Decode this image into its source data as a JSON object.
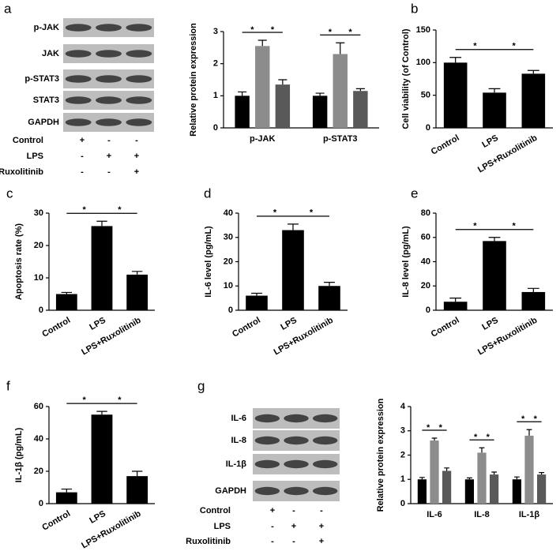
{
  "chart_data": [
    {
      "type": "bar",
      "ylabel": "Relative protein expression",
      "categories": [
        "p-JAK",
        "p-STAT3"
      ],
      "series": [
        {
          "color": "#000000",
          "values": [
            1.0,
            1.0
          ],
          "errors": [
            0.12,
            0.08
          ]
        },
        {
          "color": "#8c8c8c",
          "values": [
            2.55,
            2.3
          ],
          "errors": [
            0.18,
            0.35
          ]
        },
        {
          "color": "#595959",
          "values": [
            1.35,
            1.15
          ],
          "errors": [
            0.15,
            0.07
          ]
        }
      ],
      "ylim": [
        0,
        3
      ],
      "yticks": [
        0,
        1,
        2,
        3
      ],
      "annotations": [
        "*",
        "*",
        "*",
        "*"
      ]
    },
    {
      "type": "bar",
      "panel": "b",
      "ylabel": "Cell viability (of Control)",
      "categories": [
        "Control",
        "LPS",
        "LPS+Ruxolitinib"
      ],
      "values": [
        100,
        54,
        83
      ],
      "errors": [
        8,
        6,
        5
      ],
      "color": "#000000",
      "ylim": [
        0,
        150
      ],
      "yticks": [
        0,
        50,
        100,
        150
      ],
      "annotations": [
        "*",
        "*"
      ]
    },
    {
      "type": "bar",
      "panel": "c",
      "ylabel": "Apoptosis rate (%)",
      "categories": [
        "Control",
        "LPS",
        "LPS+Ruxolitinib"
      ],
      "values": [
        5,
        26,
        11
      ],
      "errors": [
        0.5,
        1.5,
        1
      ],
      "color": "#000000",
      "ylim": [
        0,
        30
      ],
      "yticks": [
        0,
        10,
        20,
        30
      ],
      "annotations": [
        "*",
        "*"
      ]
    },
    {
      "type": "bar",
      "panel": "d",
      "ylabel": "IL-6 level (pg/mL)",
      "categories": [
        "Control",
        "LPS",
        "LPS+Ruxolitinib"
      ],
      "values": [
        6,
        33,
        10
      ],
      "errors": [
        1,
        2.5,
        1.5
      ],
      "color": "#000000",
      "ylim": [
        0,
        40
      ],
      "yticks": [
        0,
        10,
        20,
        30,
        40
      ],
      "annotations": [
        "*",
        "*"
      ]
    },
    {
      "type": "bar",
      "panel": "e",
      "ylabel": "IL-8 level (pg/mL)",
      "categories": [
        "Control",
        "LPS",
        "LPS+Ruxolitinib"
      ],
      "values": [
        7,
        57,
        15
      ],
      "errors": [
        3,
        3,
        3
      ],
      "color": "#000000",
      "ylim": [
        0,
        80
      ],
      "yticks": [
        0,
        20,
        40,
        60,
        80
      ],
      "annotations": [
        "*",
        "*"
      ]
    },
    {
      "type": "bar",
      "panel": "f",
      "ylabel": "IL-1β (pg/mL)",
      "categories": [
        "Control",
        "LPS",
        "LPS+Ruxolitinib"
      ],
      "values": [
        7,
        55,
        17
      ],
      "errors": [
        2,
        2,
        3
      ],
      "color": "#000000",
      "ylim": [
        0,
        60
      ],
      "yticks": [
        0,
        20,
        40,
        60
      ],
      "annotations": [
        "*",
        "*"
      ]
    },
    {
      "type": "bar",
      "ylabel": "Relative protein expression",
      "categories": [
        "IL-6",
        "IL-8",
        "IL-1β"
      ],
      "series": [
        {
          "color": "#000000",
          "values": [
            1.0,
            1.0,
            1.0
          ],
          "errors": [
            0.08,
            0.06,
            0.1
          ]
        },
        {
          "color": "#8c8c8c",
          "values": [
            2.6,
            2.1,
            2.8
          ],
          "errors": [
            0.1,
            0.2,
            0.25
          ]
        },
        {
          "color": "#595959",
          "values": [
            1.35,
            1.2,
            1.2
          ],
          "errors": [
            0.12,
            0.1,
            0.08
          ]
        }
      ],
      "ylim": [
        0,
        4
      ],
      "yticks": [
        0,
        1,
        2,
        3,
        4
      ],
      "annotations": [
        "*",
        "*",
        "*",
        "*",
        "*",
        "*"
      ]
    }
  ],
  "blots": [
    {
      "panel": "a",
      "bands": [
        "p-JAK",
        "JAK",
        "p-STAT3",
        "STAT3",
        "GAPDH"
      ],
      "conditions": [
        {
          "name": "Control",
          "signs": [
            "+",
            "-",
            "-"
          ]
        },
        {
          "name": "LPS",
          "signs": [
            "-",
            "+",
            "+"
          ]
        },
        {
          "name": "Ruxolitinib",
          "signs": [
            "-",
            "-",
            "+"
          ]
        }
      ]
    },
    {
      "panel": "g",
      "bands": [
        "IL-6",
        "IL-8",
        "IL-1β",
        "GAPDH"
      ],
      "conditions": [
        {
          "name": "Control",
          "signs": [
            "+",
            "-",
            "-"
          ]
        },
        {
          "name": "LPS",
          "signs": [
            "-",
            "+",
            "+"
          ]
        },
        {
          "name": "Ruxolitinib",
          "signs": [
            "-",
            "-",
            "+"
          ]
        }
      ]
    }
  ]
}
